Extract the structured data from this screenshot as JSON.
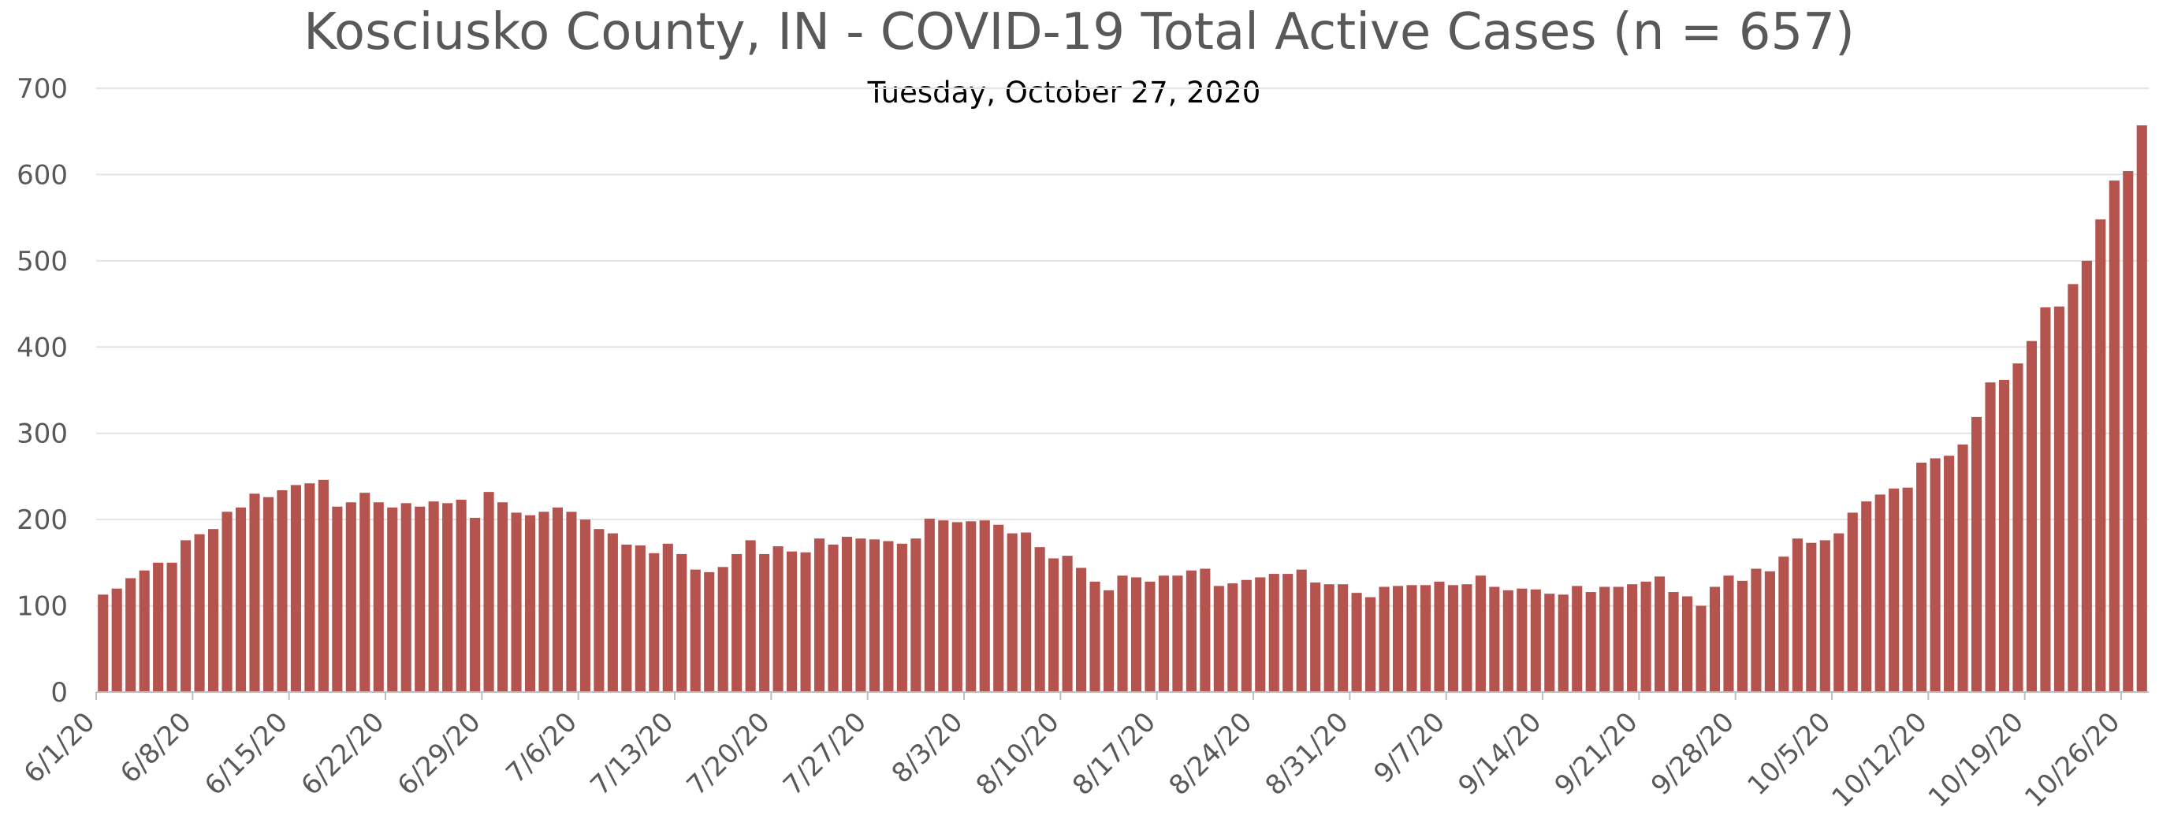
{
  "chart_data": {
    "type": "bar",
    "title": "Kosciusko County, IN - COVID-19 Total Active Cases (n = 657)",
    "subtitle": "Tuesday, October 27, 2020",
    "xlabel": "",
    "ylabel": "",
    "ylim": [
      0,
      700
    ],
    "yticks": [
      0,
      100,
      200,
      300,
      400,
      500,
      600,
      700
    ],
    "grid": true,
    "legend": "none",
    "bar_color": "#b5534f",
    "x_start": "2020-06-01",
    "x_end": "2020-10-27",
    "x_tick_labels": [
      "6/1/20",
      "6/8/20",
      "6/15/20",
      "6/22/20",
      "6/29/20",
      "7/6/20",
      "7/13/20",
      "7/20/20",
      "7/27/20",
      "8/3/20",
      "8/10/20",
      "8/17/20",
      "8/24/20",
      "8/31/20",
      "9/7/20",
      "9/14/20",
      "9/21/20",
      "9/28/20",
      "10/5/20",
      "10/12/20",
      "10/19/20",
      "10/26/20"
    ],
    "values": [
      113,
      120,
      132,
      141,
      150,
      150,
      176,
      183,
      189,
      209,
      214,
      230,
      226,
      234,
      240,
      242,
      246,
      215,
      220,
      231,
      220,
      214,
      219,
      215,
      221,
      219,
      223,
      202,
      232,
      220,
      208,
      205,
      209,
      214,
      209,
      200,
      189,
      184,
      171,
      170,
      161,
      172,
      160,
      142,
      139,
      145,
      160,
      176,
      160,
      169,
      163,
      162,
      178,
      171,
      180,
      178,
      177,
      175,
      172,
      178,
      201,
      199,
      197,
      198,
      199,
      194,
      184,
      185,
      168,
      155,
      158,
      144,
      128,
      118,
      135,
      133,
      128,
      135,
      135,
      141,
      143,
      123,
      126,
      130,
      133,
      137,
      137,
      142,
      127,
      125,
      125,
      115,
      110,
      122,
      123,
      124,
      124,
      128,
      124,
      125,
      135,
      122,
      118,
      120,
      119,
      114,
      113,
      123,
      116,
      122,
      122,
      125,
      128,
      134,
      116,
      111,
      100,
      122,
      135,
      129,
      143,
      140,
      157,
      178,
      173,
      176,
      184,
      208,
      221,
      229,
      236,
      237,
      266,
      271,
      274,
      287,
      319,
      359,
      362,
      381,
      407,
      446,
      447,
      473,
      500,
      548,
      593,
      604,
      657
    ]
  }
}
